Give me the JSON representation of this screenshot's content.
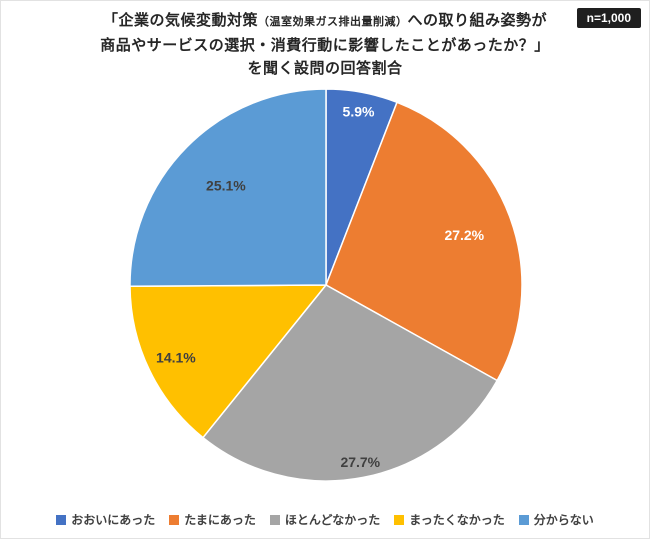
{
  "header": {
    "title_line1_pre": "「企業の気候変動対策",
    "title_line1_small": "（温室効果ガス排出量削減）",
    "title_line1_post": "への取り組み姿勢が",
    "title_line2": "商品やサービスの選択・消費行動に影響したことがあったか？」",
    "title_line3": "を聞く設問の回答割合",
    "sample_badge": "n=1,000"
  },
  "chart_data": {
    "type": "pie",
    "title": "「企業の気候変動対策（温室効果ガス排出量削減）への取り組み姿勢が商品やサービスの選択・消費行動に影響したことがあったか？」を聞く設問の回答割合",
    "sample_size_label": "n=1,000",
    "unit": "%",
    "start_angle_deg": -90,
    "direction": "clockwise",
    "legend_position": "bottom",
    "segments": [
      {
        "label": "おおいにあった",
        "value": 5.9,
        "color": "#4472C4",
        "label_color": "#FFFFFF",
        "label_r": 0.9
      },
      {
        "label": "たまにあった",
        "value": 27.2,
        "color": "#ED7D31",
        "label_color": "#FFFFFF",
        "label_r": 0.75
      },
      {
        "label": "ほとんどなかった",
        "value": 27.7,
        "color": "#A5A5A5",
        "label_color": "#404040",
        "label_r": 0.92
      },
      {
        "label": "まったくなかった",
        "value": 14.1,
        "color": "#FFC000",
        "label_color": "#404040",
        "label_r": 0.85
      },
      {
        "label": "分からない",
        "value": 25.1,
        "color": "#5B9BD5",
        "label_color": "#404040",
        "label_r": 0.72
      }
    ]
  }
}
